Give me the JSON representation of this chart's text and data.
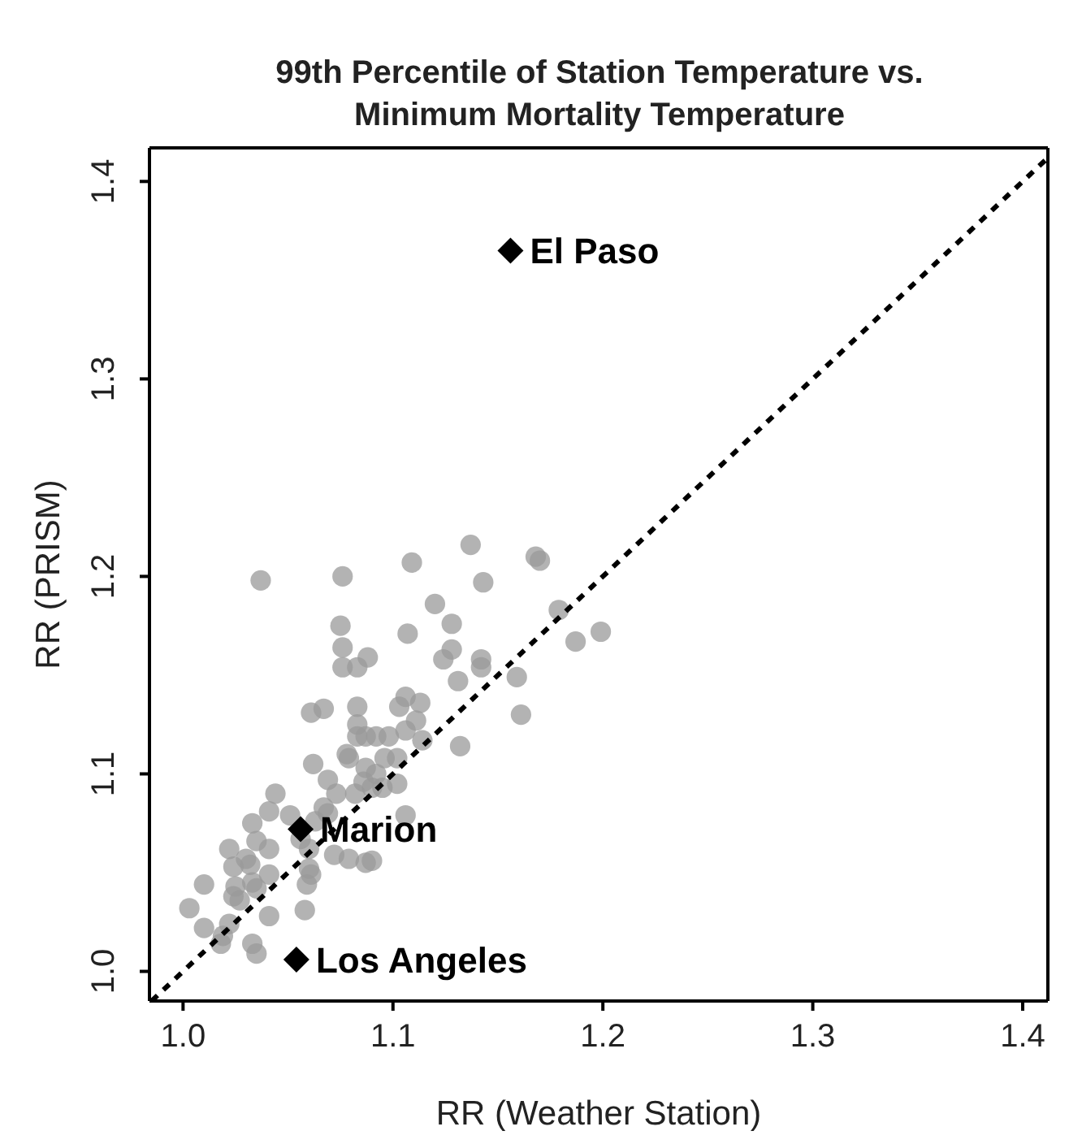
{
  "chart_data": {
    "type": "scatter",
    "title": "99th Percentile of Station Temperature vs. Minimum Mortality Temperature",
    "xlabel": "RR (Weather Station)",
    "ylabel": "RR (PRISM)",
    "xlim": [
      0.984,
      1.412
    ],
    "ylim": [
      0.985,
      1.417
    ],
    "xticks": [
      {
        "value": 1,
        "label": "1.0"
      },
      1.1,
      1.2,
      1.3,
      1.4
    ],
    "yticks": [
      {
        "value": 1,
        "label": "1.0"
      },
      1.1,
      1.2,
      1.3,
      1.4
    ],
    "grid": false,
    "series": [
      {
        "type": "scatter",
        "marker": "circle",
        "color": "#999999",
        "x": [
          1.037,
          1.076,
          1.109,
          1.137,
          1.143,
          1.168,
          1.17,
          1.12,
          1.128,
          1.179,
          1.187,
          1.199,
          1.075,
          1.076,
          1.107,
          1.088,
          1.076,
          1.083,
          1.124,
          1.128,
          1.142,
          1.142,
          1.131,
          1.159,
          1.161,
          1.132,
          1.061,
          1.067,
          1.083,
          1.083,
          1.083,
          1.087,
          1.092,
          1.098,
          1.106,
          1.103,
          1.113,
          1.111,
          1.106,
          1.114,
          1.078,
          1.079,
          1.096,
          1.102,
          1.062,
          1.069,
          1.087,
          1.086,
          1.092,
          1.095,
          1.102,
          1.09,
          1.073,
          1.082,
          1.044,
          1.041,
          1.033,
          1.051,
          1.067,
          1.069,
          1.063,
          1.056,
          1.06,
          1.06,
          1.061,
          1.059,
          1.072,
          1.079,
          1.087,
          1.09,
          1.106,
          1.022,
          1.03,
          1.035,
          1.041,
          1.024,
          1.032,
          1.041,
          1.025,
          1.033,
          1.024,
          1.027,
          1.035,
          1.01,
          1.003,
          1.01,
          1.019,
          1.022,
          1.018,
          1.033,
          1.035,
          1.041,
          1.058
        ],
        "values": [
          1.198,
          1.2,
          1.207,
          1.216,
          1.197,
          1.21,
          1.208,
          1.186,
          1.176,
          1.183,
          1.167,
          1.172,
          1.175,
          1.164,
          1.171,
          1.159,
          1.154,
          1.154,
          1.158,
          1.163,
          1.158,
          1.154,
          1.147,
          1.149,
          1.13,
          1.114,
          1.131,
          1.133,
          1.134,
          1.125,
          1.119,
          1.119,
          1.119,
          1.119,
          1.139,
          1.134,
          1.136,
          1.127,
          1.122,
          1.117,
          1.11,
          1.108,
          1.108,
          1.108,
          1.105,
          1.097,
          1.103,
          1.096,
          1.1,
          1.093,
          1.095,
          1.093,
          1.09,
          1.09,
          1.09,
          1.081,
          1.075,
          1.079,
          1.083,
          1.08,
          1.076,
          1.067,
          1.062,
          1.052,
          1.049,
          1.044,
          1.059,
          1.057,
          1.055,
          1.056,
          1.079,
          1.062,
          1.057,
          1.066,
          1.062,
          1.053,
          1.054,
          1.049,
          1.043,
          1.045,
          1.038,
          1.036,
          1.042,
          1.044,
          1.032,
          1.022,
          1.018,
          1.024,
          1.014,
          1.014,
          1.009,
          1.028,
          1.031
        ]
      },
      {
        "type": "scatter",
        "marker": "diamond",
        "color": "#000000",
        "x": [
          1.156,
          1.056,
          1.054
        ],
        "values": [
          1.365,
          1.072,
          1.006
        ]
      },
      {
        "type": "line",
        "line_style": "dashed",
        "color": "#000000",
        "x": [
          0.985,
          1.412
        ],
        "values": [
          0.985,
          1.412
        ]
      }
    ],
    "annotations": [
      {
        "text": "El Paso",
        "x": 1.156,
        "y": 1.365
      },
      {
        "text": "Marion",
        "x": 1.056,
        "y": 1.072
      },
      {
        "text": "Los Angeles",
        "x": 1.054,
        "y": 1.006
      }
    ]
  }
}
